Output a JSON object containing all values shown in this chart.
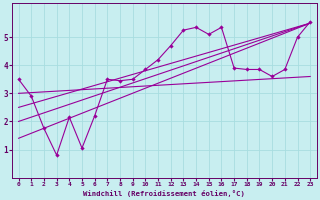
{
  "xlabel": "Windchill (Refroidissement éolien,°C)",
  "background_color": "#c8eef0",
  "line_color": "#990099",
  "xlim": [
    -0.5,
    23.5
  ],
  "ylim": [
    0,
    6.2
  ],
  "xticks": [
    0,
    1,
    2,
    3,
    4,
    5,
    6,
    7,
    8,
    9,
    10,
    11,
    12,
    13,
    14,
    15,
    16,
    17,
    18,
    19,
    20,
    21,
    22,
    23
  ],
  "yticks": [
    1,
    2,
    3,
    4,
    5
  ],
  "grid_color": "#a8dde0",
  "data_x": [
    0,
    1,
    2,
    3,
    4,
    5,
    6,
    7,
    8,
    9,
    10,
    11,
    12,
    13,
    14,
    15,
    16,
    17,
    18,
    19,
    20,
    21,
    22,
    23
  ],
  "data_y": [
    3.5,
    2.9,
    1.75,
    0.8,
    2.15,
    1.05,
    2.2,
    3.5,
    3.45,
    3.5,
    3.85,
    4.2,
    4.7,
    5.25,
    5.35,
    5.1,
    5.35,
    3.9,
    3.85,
    3.85,
    3.6,
    3.85,
    5.0,
    5.55
  ],
  "trend1_x": [
    0,
    23
  ],
  "trend1_y": [
    3.0,
    3.6
  ],
  "trend2_x": [
    0,
    23
  ],
  "trend2_y": [
    2.5,
    5.5
  ],
  "trend3_x": [
    0,
    23
  ],
  "trend3_y": [
    2.0,
    5.5
  ],
  "trend4_x": [
    0,
    23
  ],
  "trend4_y": [
    1.4,
    5.5
  ]
}
